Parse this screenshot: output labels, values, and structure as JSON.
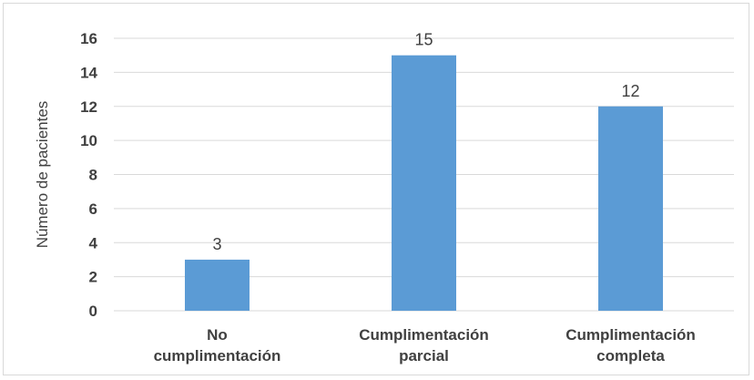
{
  "chart_data": {
    "type": "bar",
    "title": "",
    "xlabel": "",
    "ylabel": "Número de pacientes",
    "categories": [
      [
        "No",
        "cumplimentación"
      ],
      [
        "Cumplimentación",
        "parcial"
      ],
      [
        "Cumplimentación",
        "completa"
      ]
    ],
    "values": [
      3,
      15,
      12
    ],
    "data_labels": [
      "3",
      "15",
      "12"
    ],
    "ylim": [
      0,
      16
    ],
    "yticks": [
      "0",
      "2",
      "4",
      "6",
      "8",
      "10",
      "12",
      "14",
      "16"
    ],
    "grid": true,
    "legend": "none",
    "bar_color": "#5b9bd5",
    "grid_color": "#d9d9d9"
  }
}
